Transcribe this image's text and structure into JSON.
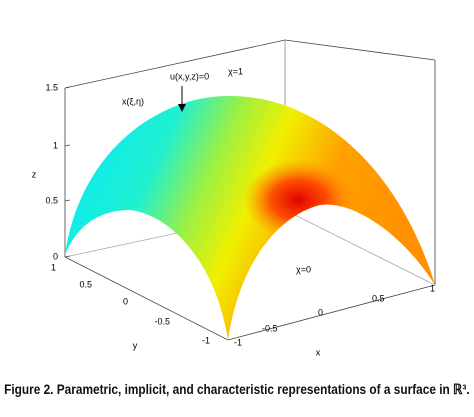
{
  "figure": {
    "z_label": "z",
    "y_label": "y",
    "x_label": "x",
    "z_ticks": [
      "0",
      "0.5",
      "1",
      "1.5"
    ],
    "y_ticks": [
      "1",
      "0.5",
      "0",
      "-0.5",
      "-1"
    ],
    "x_ticks": [
      "-1",
      "-0.5",
      "0",
      "0.5",
      "1"
    ],
    "annotations": [
      "u(x,y,z)=0",
      "χ=1",
      "x(ξ,η)",
      "χ=0"
    ]
  },
  "caption": "Figure 2. Parametric, implicit, and characteristic representations of a surface in ℝ³."
}
